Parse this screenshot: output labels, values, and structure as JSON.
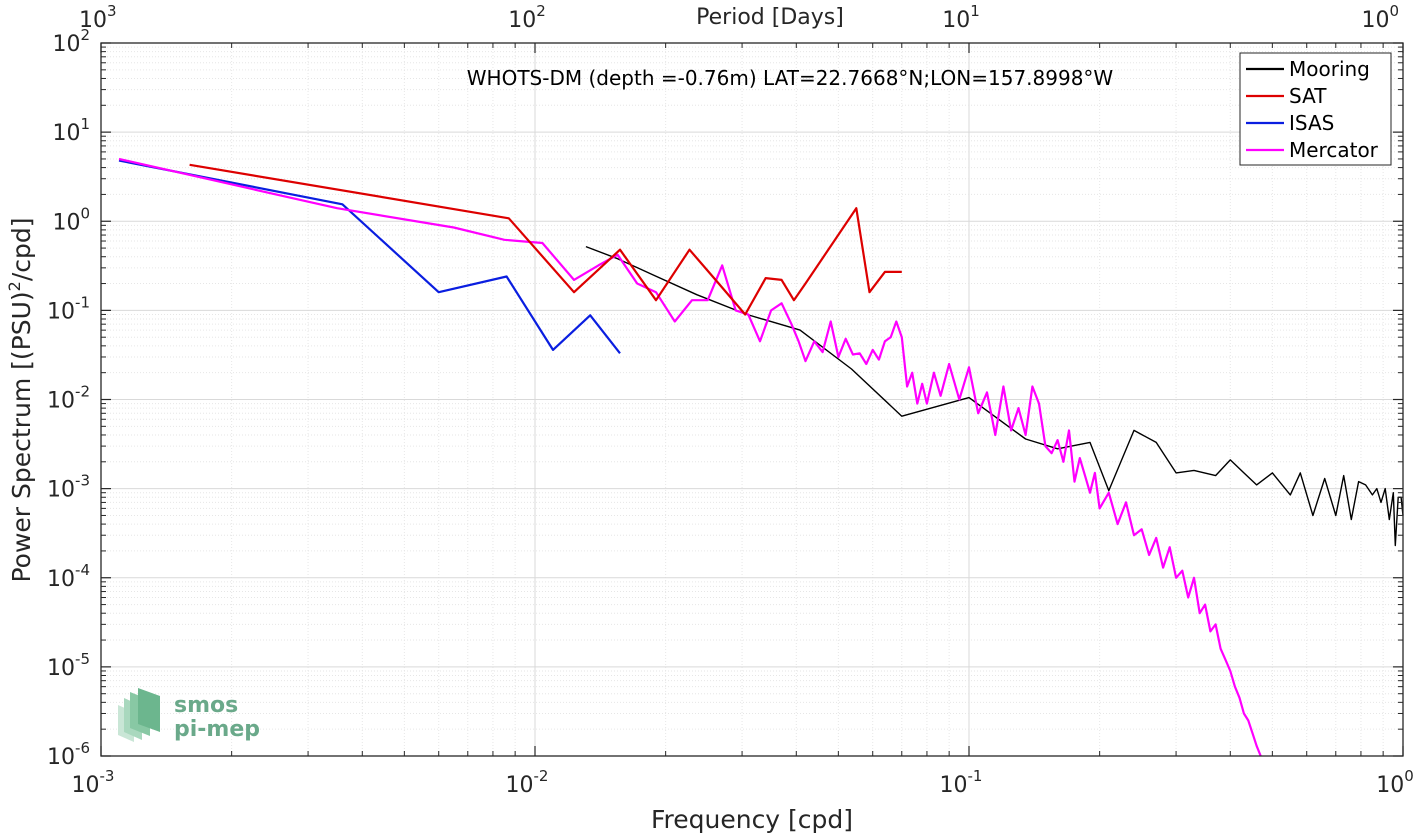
{
  "chart_data": {
    "type": "line",
    "title": "WHOTS-DM (depth =-0.76m) LAT=22.7668°N;LON=157.8998°W",
    "xlabel": "Frequency [cpd]",
    "ylabel_main": "Power Spectrum [(PSU)",
    "ylabel_sup": "2",
    "ylabel_tail": "/cpd]",
    "top_xlabel": "Period [Days]",
    "x_scale": "log",
    "y_scale": "log",
    "xlim": [
      0.001,
      1
    ],
    "ylim": [
      1e-06,
      100
    ],
    "grid": true,
    "legend_position": "top-right",
    "x_ticks": [
      {
        "value": 0.001,
        "base": "10",
        "exp": "-3"
      },
      {
        "value": 0.01,
        "base": "10",
        "exp": "-2"
      },
      {
        "value": 0.1,
        "base": "10",
        "exp": "-1"
      },
      {
        "value": 1,
        "base": "10",
        "exp": "0"
      }
    ],
    "top_ticks": [
      {
        "value": 0.001,
        "base": "10",
        "exp": "3"
      },
      {
        "value": 0.01,
        "base": "10",
        "exp": "2"
      },
      {
        "value": 0.1,
        "base": "10",
        "exp": "1"
      },
      {
        "value": 1,
        "base": "10",
        "exp": "0"
      }
    ],
    "y_ticks": [
      {
        "value": 100,
        "base": "10",
        "exp": "2"
      },
      {
        "value": 10,
        "base": "10",
        "exp": "1"
      },
      {
        "value": 1,
        "base": "10",
        "exp": "0"
      },
      {
        "value": 0.1,
        "base": "10",
        "exp": "-1"
      },
      {
        "value": 0.01,
        "base": "10",
        "exp": "-2"
      },
      {
        "value": 0.001,
        "base": "10",
        "exp": "-3"
      },
      {
        "value": 0.0001,
        "base": "10",
        "exp": "-4"
      },
      {
        "value": 1e-05,
        "base": "10",
        "exp": "-5"
      },
      {
        "value": 1e-06,
        "base": "10",
        "exp": "-6"
      }
    ],
    "series": [
      {
        "name": "Mooring",
        "color": "#000000",
        "width": 1.4,
        "x": [
          0.0131,
          0.0155,
          0.0187,
          0.0236,
          0.0308,
          0.0408,
          0.0536,
          0.07,
          0.1,
          0.135,
          0.16,
          0.19,
          0.21,
          0.24,
          0.27,
          0.3,
          0.33,
          0.37,
          0.4,
          0.43,
          0.46,
          0.5,
          0.55,
          0.58,
          0.62,
          0.66,
          0.7,
          0.73,
          0.76,
          0.79,
          0.82,
          0.85,
          0.87,
          0.89,
          0.91,
          0.93,
          0.95,
          0.96,
          0.975,
          0.99,
          1.0
        ],
        "y": [
          0.52,
          0.38,
          0.25,
          0.15,
          0.09,
          0.06,
          0.022,
          0.0065,
          0.0105,
          0.0036,
          0.0028,
          0.0033,
          0.00095,
          0.0045,
          0.0033,
          0.0015,
          0.0016,
          0.0014,
          0.0021,
          0.0015,
          0.0011,
          0.0015,
          0.00085,
          0.0015,
          0.0005,
          0.0013,
          0.0005,
          0.0014,
          0.00045,
          0.0012,
          0.0011,
          0.00085,
          0.001,
          0.0007,
          0.001,
          0.00045,
          0.0009,
          0.00023,
          0.0008,
          0.0008,
          0.0005
        ]
      },
      {
        "name": "SAT",
        "color": "#dd0000",
        "width": 2.2,
        "x": [
          0.0016,
          0.0087,
          0.0123,
          0.0157,
          0.019,
          0.0227,
          0.0265,
          0.0305,
          0.034,
          0.037,
          0.0395,
          0.042,
          0.055,
          0.059,
          0.064,
          0.07
        ],
        "y": [
          4.3,
          1.08,
          0.16,
          0.48,
          0.13,
          0.48,
          0.2,
          0.09,
          0.23,
          0.22,
          0.13,
          0.2,
          1.4,
          0.16,
          0.27,
          0.27
        ]
      },
      {
        "name": "ISAS",
        "color": "#0a1ee0",
        "width": 2.2,
        "x": [
          0.0011,
          0.0036,
          0.006,
          0.0086,
          0.011,
          0.0134,
          0.0157
        ],
        "y": [
          4.8,
          1.55,
          0.16,
          0.24,
          0.036,
          0.088,
          0.033
        ]
      },
      {
        "name": "Mercator",
        "color": "#ff00ff",
        "width": 2.2,
        "x": [
          0.0011,
          0.0035,
          0.0065,
          0.0085,
          0.0104,
          0.0123,
          0.014,
          0.0155,
          0.0172,
          0.019,
          0.021,
          0.023,
          0.025,
          0.027,
          0.029,
          0.031,
          0.033,
          0.035,
          0.037,
          0.039,
          0.0405,
          0.042,
          0.044,
          0.046,
          0.048,
          0.05,
          0.052,
          0.054,
          0.056,
          0.058,
          0.06,
          0.062,
          0.064,
          0.066,
          0.068,
          0.07,
          0.072,
          0.074,
          0.076,
          0.078,
          0.08,
          0.083,
          0.086,
          0.09,
          0.095,
          0.1,
          0.105,
          0.11,
          0.115,
          0.12,
          0.125,
          0.13,
          0.135,
          0.14,
          0.145,
          0.15,
          0.155,
          0.16,
          0.165,
          0.17,
          0.175,
          0.18,
          0.185,
          0.19,
          0.195,
          0.2,
          0.21,
          0.22,
          0.23,
          0.24,
          0.25,
          0.26,
          0.27,
          0.28,
          0.29,
          0.3,
          0.31,
          0.32,
          0.33,
          0.34,
          0.35,
          0.36,
          0.37,
          0.38,
          0.39,
          0.4,
          0.41,
          0.42,
          0.43,
          0.44,
          0.45,
          0.46,
          0.47
        ],
        "y": [
          5.0,
          1.4,
          0.85,
          0.62,
          0.57,
          0.22,
          0.32,
          0.42,
          0.2,
          0.16,
          0.075,
          0.13,
          0.13,
          0.32,
          0.1,
          0.09,
          0.045,
          0.1,
          0.12,
          0.07,
          0.045,
          0.027,
          0.045,
          0.034,
          0.075,
          0.03,
          0.048,
          0.032,
          0.033,
          0.025,
          0.036,
          0.028,
          0.045,
          0.05,
          0.075,
          0.05,
          0.014,
          0.02,
          0.009,
          0.015,
          0.009,
          0.02,
          0.011,
          0.025,
          0.01,
          0.023,
          0.007,
          0.012,
          0.004,
          0.014,
          0.0045,
          0.008,
          0.004,
          0.014,
          0.009,
          0.003,
          0.0025,
          0.0035,
          0.002,
          0.0045,
          0.0012,
          0.0022,
          0.0014,
          0.0009,
          0.0015,
          0.0006,
          0.0009,
          0.0004,
          0.0007,
          0.0003,
          0.00035,
          0.00018,
          0.00028,
          0.00013,
          0.00022,
          0.0001,
          0.00012,
          6e-05,
          0.0001,
          4e-05,
          5e-05,
          2.5e-05,
          3e-05,
          1.6e-05,
          1.2e-05,
          9e-06,
          6e-06,
          4.5e-06,
          3e-06,
          2.5e-06,
          1.8e-06,
          1.3e-06,
          1e-06
        ]
      }
    ]
  },
  "logo": {
    "line1": "smos",
    "line2": "pi-mep",
    "color": "#6aa98a"
  }
}
